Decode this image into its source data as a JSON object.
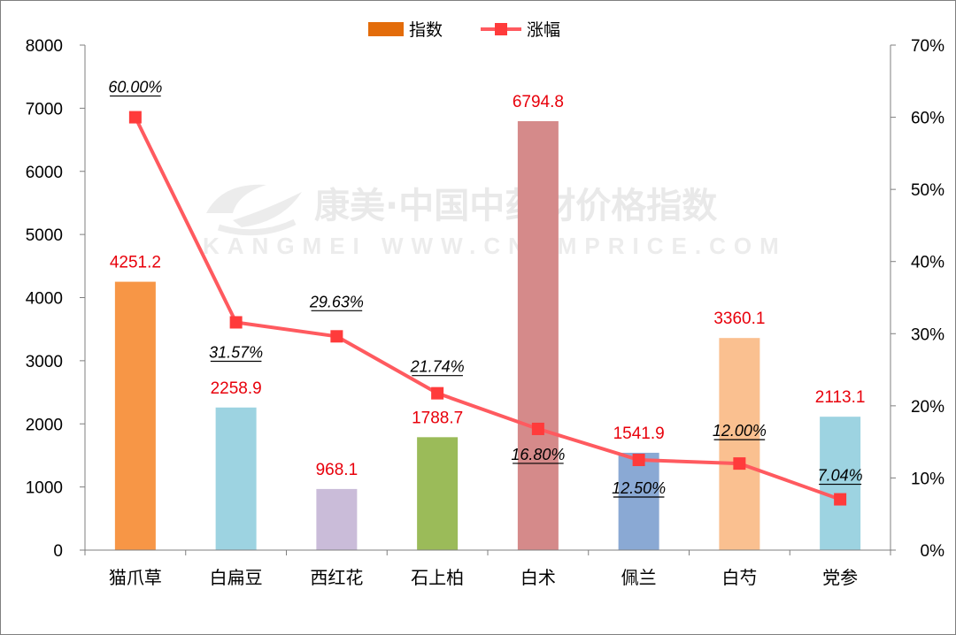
{
  "watermark": {
    "line1": "康美·中国中药材价格指数",
    "line2": "KANGMEI WWW.CNKMPRICE.COM"
  },
  "chart_data": {
    "type": "bar",
    "categories": [
      "猫爪草",
      "白扁豆",
      "西红花",
      "石上柏",
      "白术",
      "佩兰",
      "白芍",
      "党参"
    ],
    "series": [
      {
        "name": "指数",
        "type": "bar",
        "axis": "left",
        "values": [
          4251.2,
          2258.9,
          968.1,
          1788.7,
          6794.8,
          1541.9,
          3360.1,
          2113.1
        ],
        "labels": [
          "4251.2",
          "2258.9",
          "968.1",
          "1788.7",
          "6794.8",
          "1541.9",
          "3360.1",
          "2113.1"
        ],
        "colors": [
          "#f79646",
          "#9dd3e1",
          "#cabcd9",
          "#9bbb59",
          "#d58a8a",
          "#8aa9d4",
          "#fac090",
          "#9dd3e1"
        ],
        "legend_color": "#e36c0a"
      },
      {
        "name": "涨幅",
        "type": "line",
        "axis": "right",
        "values": [
          60.0,
          31.57,
          29.63,
          21.74,
          16.8,
          12.5,
          12.0,
          7.04
        ],
        "labels": [
          "60.00%",
          "31.57%",
          "29.63%",
          "21.74%",
          "16.80%",
          "12.50%",
          "12.00%",
          "7.04%"
        ],
        "line_color": "#ff5a5f",
        "marker_color": "#ff3b3b"
      }
    ],
    "y_left": {
      "min": 0,
      "max": 8000,
      "ticks": [
        "0",
        "1000",
        "2000",
        "3000",
        "4000",
        "5000",
        "6000",
        "7000",
        "8000"
      ]
    },
    "y_right": {
      "min": 0,
      "max": 70,
      "ticks": [
        "0%",
        "10%",
        "20%",
        "30%",
        "40%",
        "50%",
        "60%",
        "70%"
      ]
    },
    "legend": {
      "position": "top-center"
    },
    "grid": false
  }
}
